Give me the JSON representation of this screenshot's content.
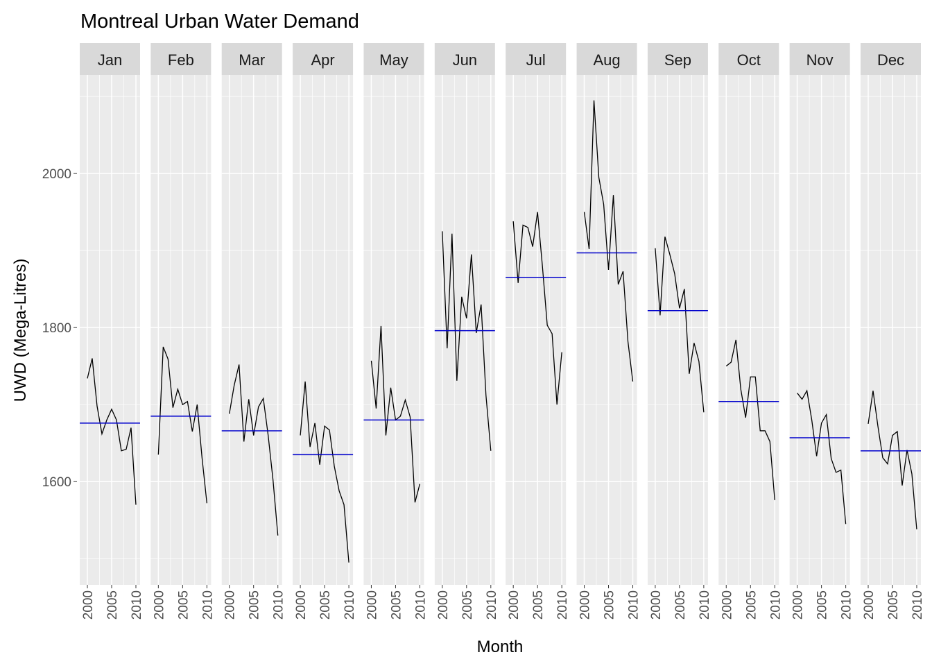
{
  "chart_data": {
    "type": "line",
    "title": "Montreal Urban Water Demand",
    "x_label": "Month",
    "y_label": "UWD (Mega-Litres)",
    "x": [
      2000,
      2001,
      2002,
      2003,
      2004,
      2005,
      2006,
      2007,
      2008,
      2009,
      2010
    ],
    "xlim": [
      1998.43,
      2010.86
    ],
    "xticks": [
      2000,
      2005,
      2010
    ],
    "xminorticks": [
      2002.5,
      2007.5
    ],
    "ylim": [
      1466,
      2128
    ],
    "yticks": [
      1600,
      1800,
      2000
    ],
    "yminorticks": [
      1500,
      1700,
      1900,
      2100
    ],
    "color": "#000000",
    "mean_color": "#0000cc",
    "grid": true,
    "series": [
      {
        "name": "Jan",
        "values": [
          1734,
          1760,
          1698,
          1662,
          1680,
          1694,
          1680,
          1640,
          1642,
          1670,
          1570
        ],
        "mean": 1676
      },
      {
        "name": "Feb",
        "values": [
          1635,
          1775,
          1759,
          1696,
          1720,
          1700,
          1704,
          1665,
          1700,
          1631,
          1572
        ],
        "mean": 1685
      },
      {
        "name": "Mar",
        "values": [
          1688,
          1725,
          1752,
          1652,
          1707,
          1660,
          1697,
          1708,
          1660,
          1602,
          1530
        ],
        "mean": 1666
      },
      {
        "name": "Apr",
        "values": [
          1660,
          1730,
          1645,
          1676,
          1622,
          1672,
          1667,
          1620,
          1588,
          1570,
          1495
        ],
        "mean": 1635
      },
      {
        "name": "May",
        "values": [
          1757,
          1695,
          1802,
          1660,
          1722,
          1680,
          1685,
          1706,
          1684,
          1573,
          1597
        ],
        "mean": 1680
      },
      {
        "name": "Jun",
        "values": [
          1925,
          1773,
          1922,
          1731,
          1840,
          1812,
          1895,
          1793,
          1830,
          1712,
          1640
        ],
        "mean": 1796
      },
      {
        "name": "Jul",
        "values": [
          1938,
          1858,
          1933,
          1930,
          1905,
          1950,
          1880,
          1803,
          1792,
          1700,
          1768
        ],
        "mean": 1865
      },
      {
        "name": "Aug",
        "values": [
          1950,
          1902,
          2095,
          1995,
          1960,
          1875,
          1972,
          1856,
          1873,
          1782,
          1730
        ],
        "mean": 1897
      },
      {
        "name": "Sep",
        "values": [
          1903,
          1816,
          1918,
          1895,
          1870,
          1825,
          1850,
          1740,
          1780,
          1756,
          1690
        ],
        "mean": 1822
      },
      {
        "name": "Oct",
        "values": [
          1750,
          1755,
          1784,
          1720,
          1683,
          1736,
          1736,
          1666,
          1666,
          1652,
          1576
        ],
        "mean": 1704
      },
      {
        "name": "Nov",
        "values": [
          1715,
          1707,
          1718,
          1680,
          1633,
          1676,
          1687,
          1630,
          1612,
          1615,
          1545
        ],
        "mean": 1657
      },
      {
        "name": "Dec",
        "values": [
          1675,
          1718,
          1672,
          1631,
          1623,
          1660,
          1665,
          1595,
          1641,
          1610,
          1538
        ],
        "mean": 1640
      }
    ]
  }
}
